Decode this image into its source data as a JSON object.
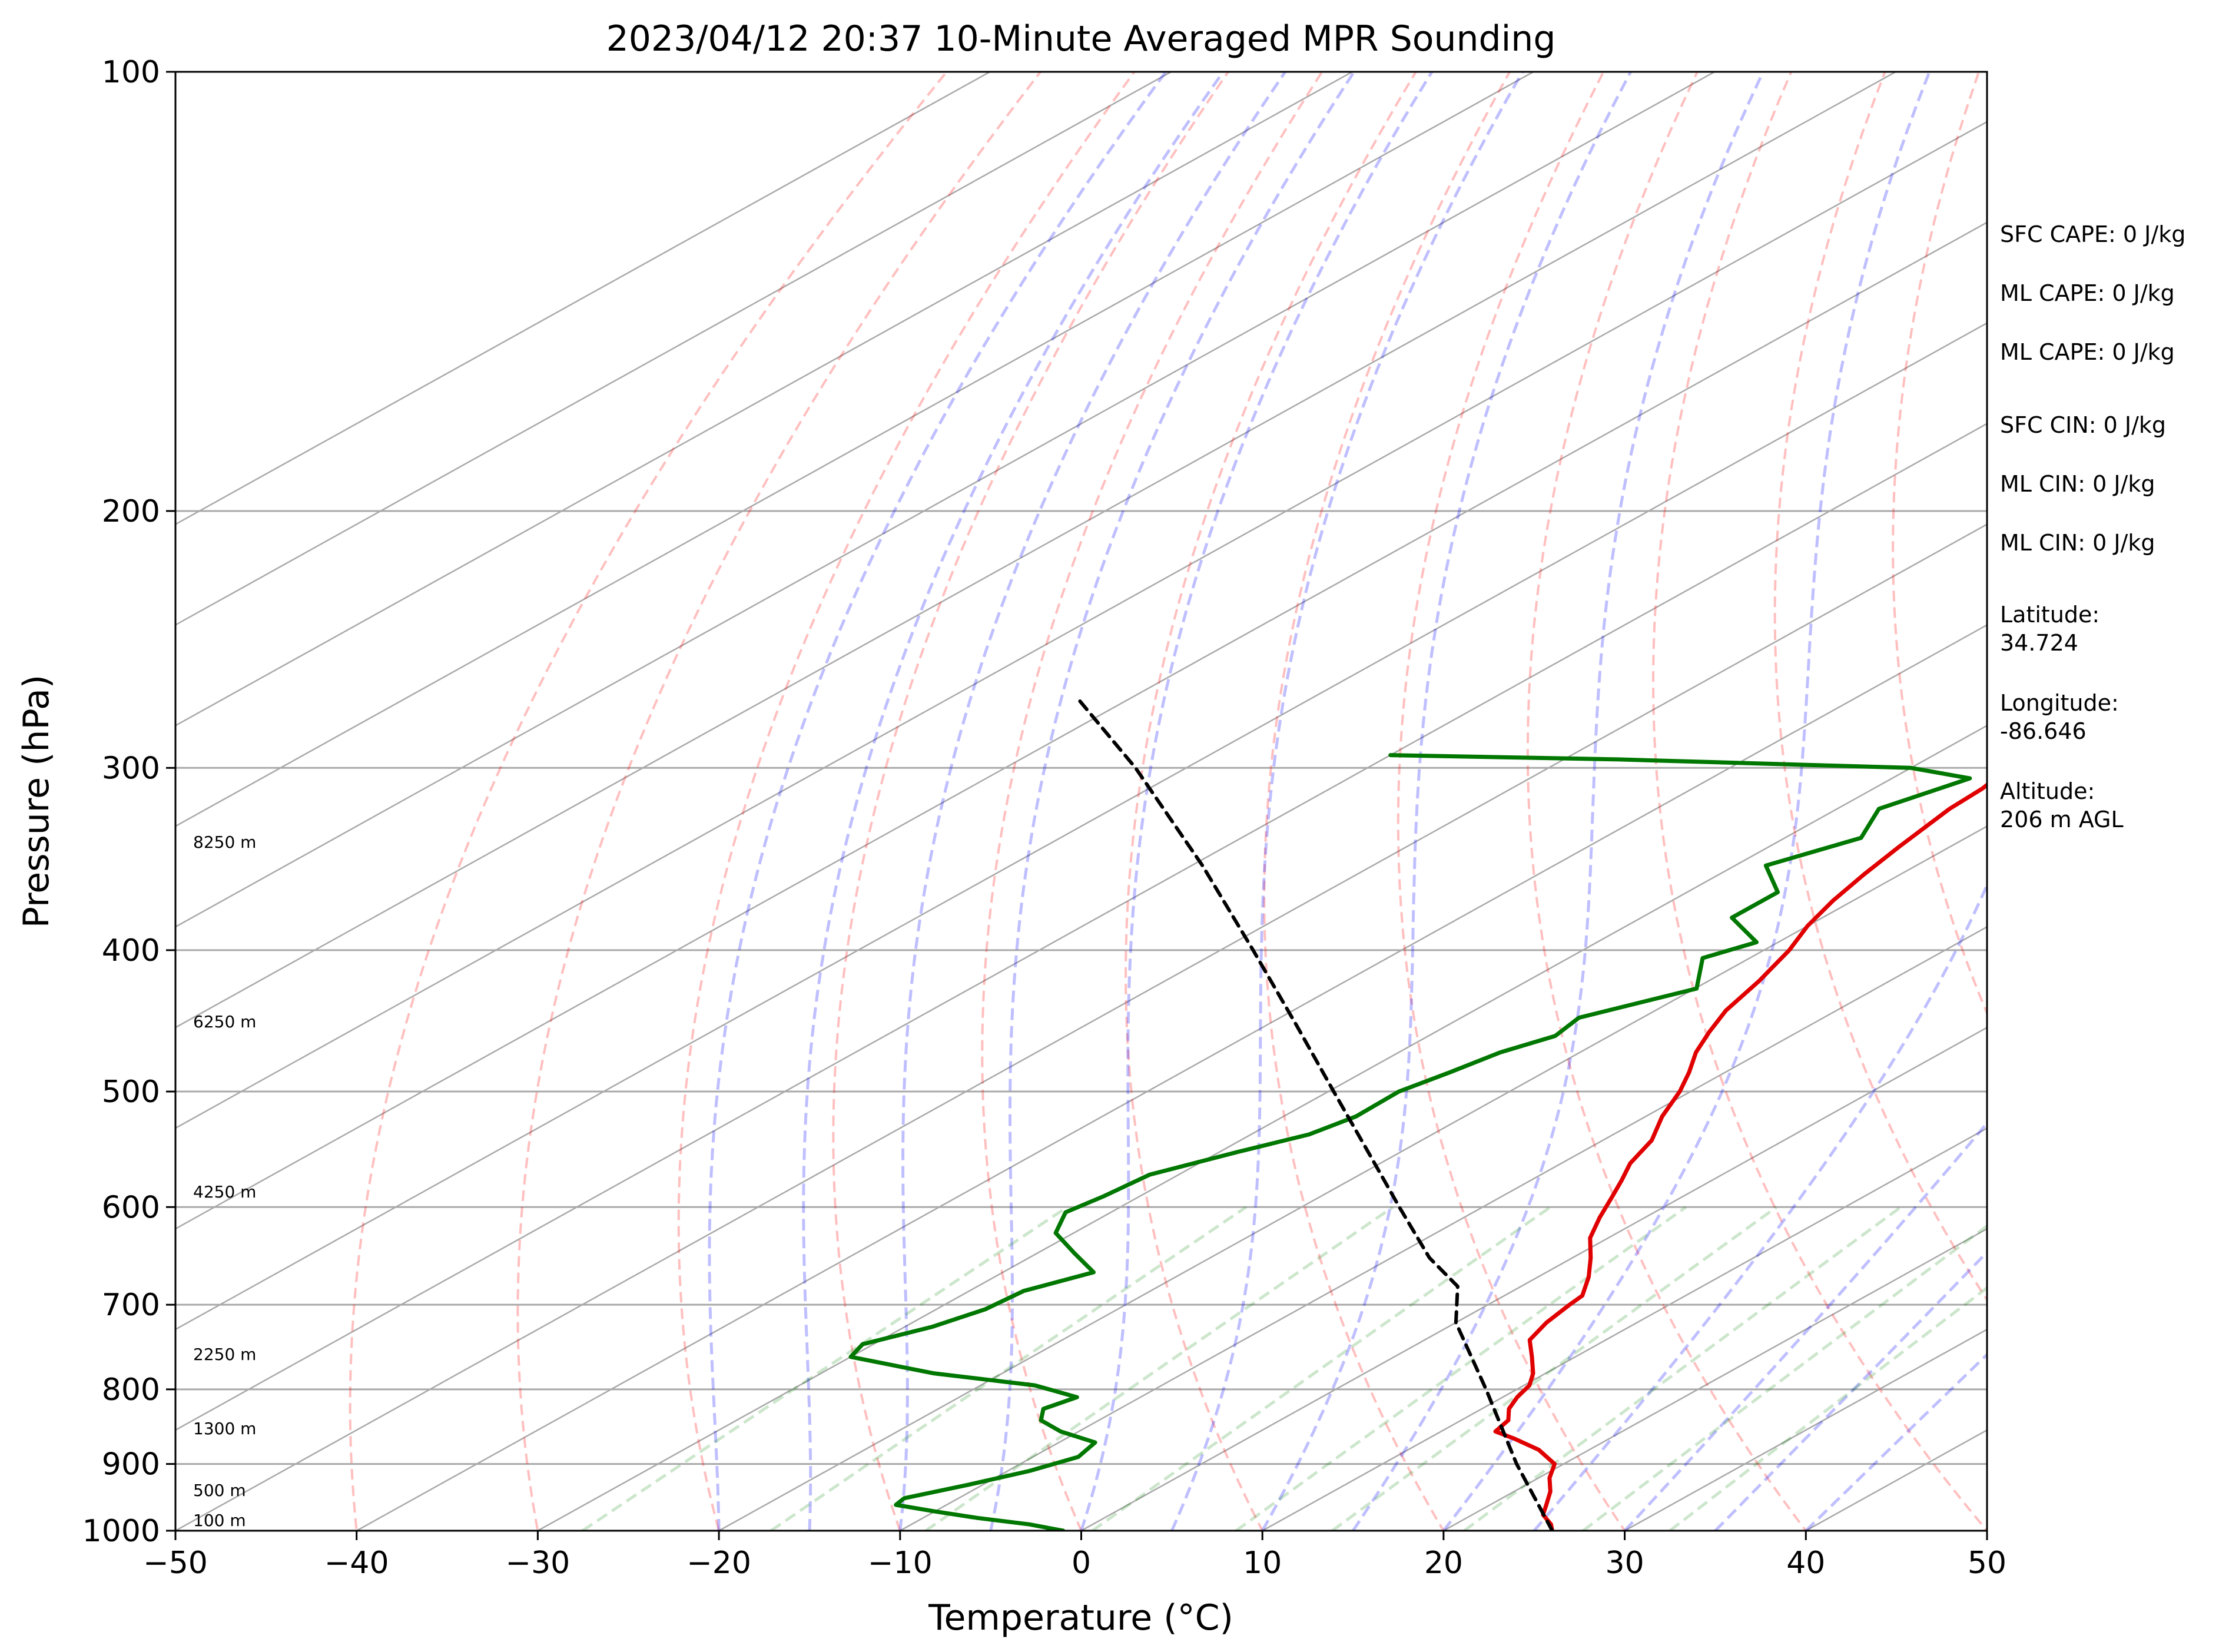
{
  "chart_data": {
    "type": "line",
    "title": "2023/04/12 20:37 10-Minute Averaged MPR Sounding",
    "xlabel": "Temperature (°C)",
    "ylabel": "Pressure (hPa)",
    "xlim": [
      -50,
      50
    ],
    "ylim": [
      1000,
      100
    ],
    "y_scale": "log",
    "grid": true,
    "x_ticks": [
      "−50",
      "−40",
      "−30",
      "−20",
      "−10",
      "0",
      "10",
      "20",
      "30",
      "40",
      "50"
    ],
    "y_ticks": [
      "100",
      "200",
      "300",
      "400",
      "500",
      "600",
      "700",
      "800",
      "900",
      "1000"
    ],
    "height_labels": [
      "8250 m",
      "6250 m",
      "4250 m",
      "2250 m",
      "1300 m",
      "500 m",
      "100 m"
    ],
    "series": [
      {
        "color": "#e00000",
        "points": [
          [
            1000,
            26.0
          ],
          [
            990,
            25.3
          ],
          [
            975,
            23.9
          ],
          [
            960,
            23.1
          ],
          [
            940,
            22.0
          ],
          [
            920,
            20.6
          ],
          [
            900,
            19.5
          ],
          [
            880,
            17.2
          ],
          [
            865,
            14.8
          ],
          [
            855,
            13.0
          ],
          [
            840,
            12.6
          ],
          [
            825,
            11.5
          ],
          [
            810,
            10.8
          ],
          [
            795,
            10.3
          ],
          [
            780,
            9.3
          ],
          [
            760,
            7.6
          ],
          [
            740,
            5.8
          ],
          [
            720,
            5.0
          ],
          [
            700,
            4.5
          ],
          [
            690,
            4.3
          ],
          [
            670,
            2.8
          ],
          [
            650,
            1.0
          ],
          [
            630,
            -1.0
          ],
          [
            610,
            -2.5
          ],
          [
            590,
            -3.9
          ],
          [
            575,
            -5.0
          ],
          [
            560,
            -6.2
          ],
          [
            540,
            -7.3
          ],
          [
            520,
            -9.1
          ],
          [
            500,
            -10.6
          ],
          [
            485,
            -12.0
          ],
          [
            470,
            -13.6
          ],
          [
            455,
            -14.9
          ],
          [
            440,
            -16.1
          ],
          [
            420,
            -17.2
          ],
          [
            400,
            -18.6
          ],
          [
            385,
            -20.0
          ],
          [
            370,
            -21.1
          ],
          [
            355,
            -22.0
          ],
          [
            340,
            -22.8
          ],
          [
            320,
            -23.8
          ],
          [
            310,
            -24.0
          ],
          [
            300,
            -24.6
          ],
          [
            285,
            -25.6
          ],
          [
            275,
            -26.5
          ],
          [
            265,
            -27.3
          ]
        ]
      },
      {
        "color": "#007700",
        "points": [
          [
            1000,
            -1.0
          ],
          [
            990,
            -3.5
          ],
          [
            980,
            -7.0
          ],
          [
            970,
            -10.0
          ],
          [
            960,
            -12.8
          ],
          [
            950,
            -13.0
          ],
          [
            930,
            -10.8
          ],
          [
            910,
            -8.8
          ],
          [
            890,
            -7.5
          ],
          [
            870,
            -8.0
          ],
          [
            855,
            -11.0
          ],
          [
            840,
            -13.2
          ],
          [
            825,
            -14.2
          ],
          [
            810,
            -13.5
          ],
          [
            795,
            -17.0
          ],
          [
            780,
            -23.8
          ],
          [
            760,
            -30.0
          ],
          [
            745,
            -30.6
          ],
          [
            725,
            -28.5
          ],
          [
            705,
            -27.3
          ],
          [
            685,
            -27.0
          ],
          [
            665,
            -25.0
          ],
          [
            645,
            -28.0
          ],
          [
            625,
            -31.0
          ],
          [
            605,
            -32.5
          ],
          [
            590,
            -32.0
          ],
          [
            570,
            -31.6
          ],
          [
            550,
            -29.0
          ],
          [
            535,
            -26.8
          ],
          [
            520,
            -26.0
          ],
          [
            500,
            -26.1
          ],
          [
            485,
            -25.2
          ],
          [
            470,
            -24.4
          ],
          [
            458,
            -23.0
          ],
          [
            445,
            -23.5
          ],
          [
            425,
            -19.9
          ],
          [
            405,
            -22.6
          ],
          [
            395,
            -21.2
          ],
          [
            380,
            -25.0
          ],
          [
            365,
            -25.0
          ],
          [
            350,
            -28.3
          ],
          [
            335,
            -25.8
          ],
          [
            320,
            -27.7
          ],
          [
            305,
            -25.7
          ],
          [
            300,
            -30.0
          ],
          [
            296,
            -47.0
          ],
          [
            294,
            -60.0
          ]
        ]
      },
      {
        "color": "#000000",
        "dashed": true,
        "points": [
          [
            1000,
            26.0
          ],
          [
            900,
            17.4
          ],
          [
            800,
            8.3
          ],
          [
            720,
            0.0
          ],
          [
            680,
            -3.5
          ],
          [
            650,
            -7.9
          ],
          [
            600,
            -14.6
          ],
          [
            550,
            -21.8
          ],
          [
            500,
            -29.7
          ],
          [
            450,
            -38.4
          ],
          [
            400,
            -48.2
          ],
          [
            350,
            -59.4
          ],
          [
            300,
            -72.8
          ],
          [
            270,
            -82.5
          ]
        ]
      }
    ]
  },
  "side_info": [
    "SFC CAPE: 0 J/kg",
    "ML CAPE: 0 J/kg",
    "ML CAPE: 0 J/kg",
    "SFC CIN: 0 J/kg",
    "ML CIN: 0 J/kg",
    "ML CIN: 0 J/kg",
    "Latitude:\n34.724",
    "Longitude:\n-86.646",
    "Altitude:\n206 m AGL"
  ]
}
